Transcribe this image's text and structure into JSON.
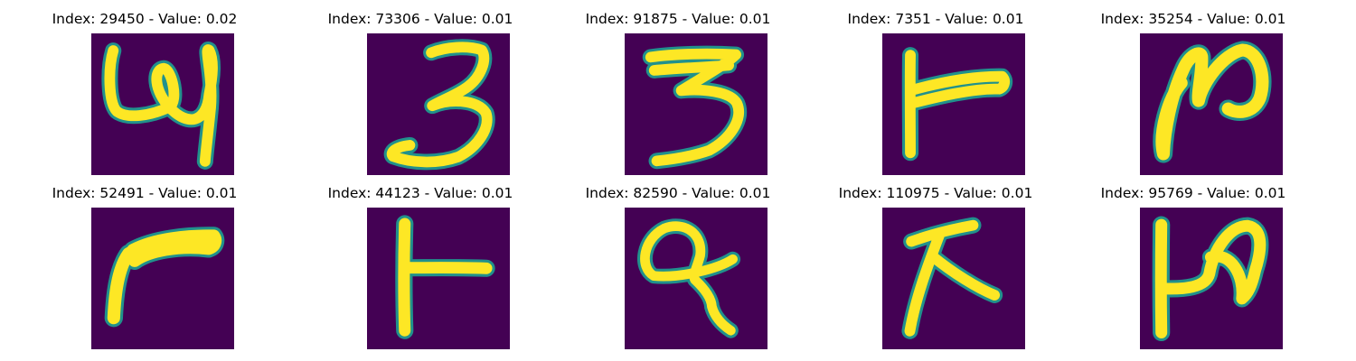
{
  "colors": {
    "background": "#440154",
    "stroke": "#fde725",
    "edge": "#21918c"
  },
  "panels": [
    {
      "title": "Index: 29450 - Value: 0.02"
    },
    {
      "title": "Index: 73306 - Value: 0.01"
    },
    {
      "title": "Index: 91875 - Value: 0.01"
    },
    {
      "title": "Index: 7351 - Value: 0.01"
    },
    {
      "title": "Index: 35254 - Value: 0.01"
    },
    {
      "title": "Index: 52491 - Value: 0.01"
    },
    {
      "title": "Index: 44123 - Value: 0.01"
    },
    {
      "title": "Index: 82590 - Value: 0.01"
    },
    {
      "title": "Index: 110975 - Value: 0.01"
    },
    {
      "title": "Index: 95769 - Value: 0.01"
    }
  ]
}
